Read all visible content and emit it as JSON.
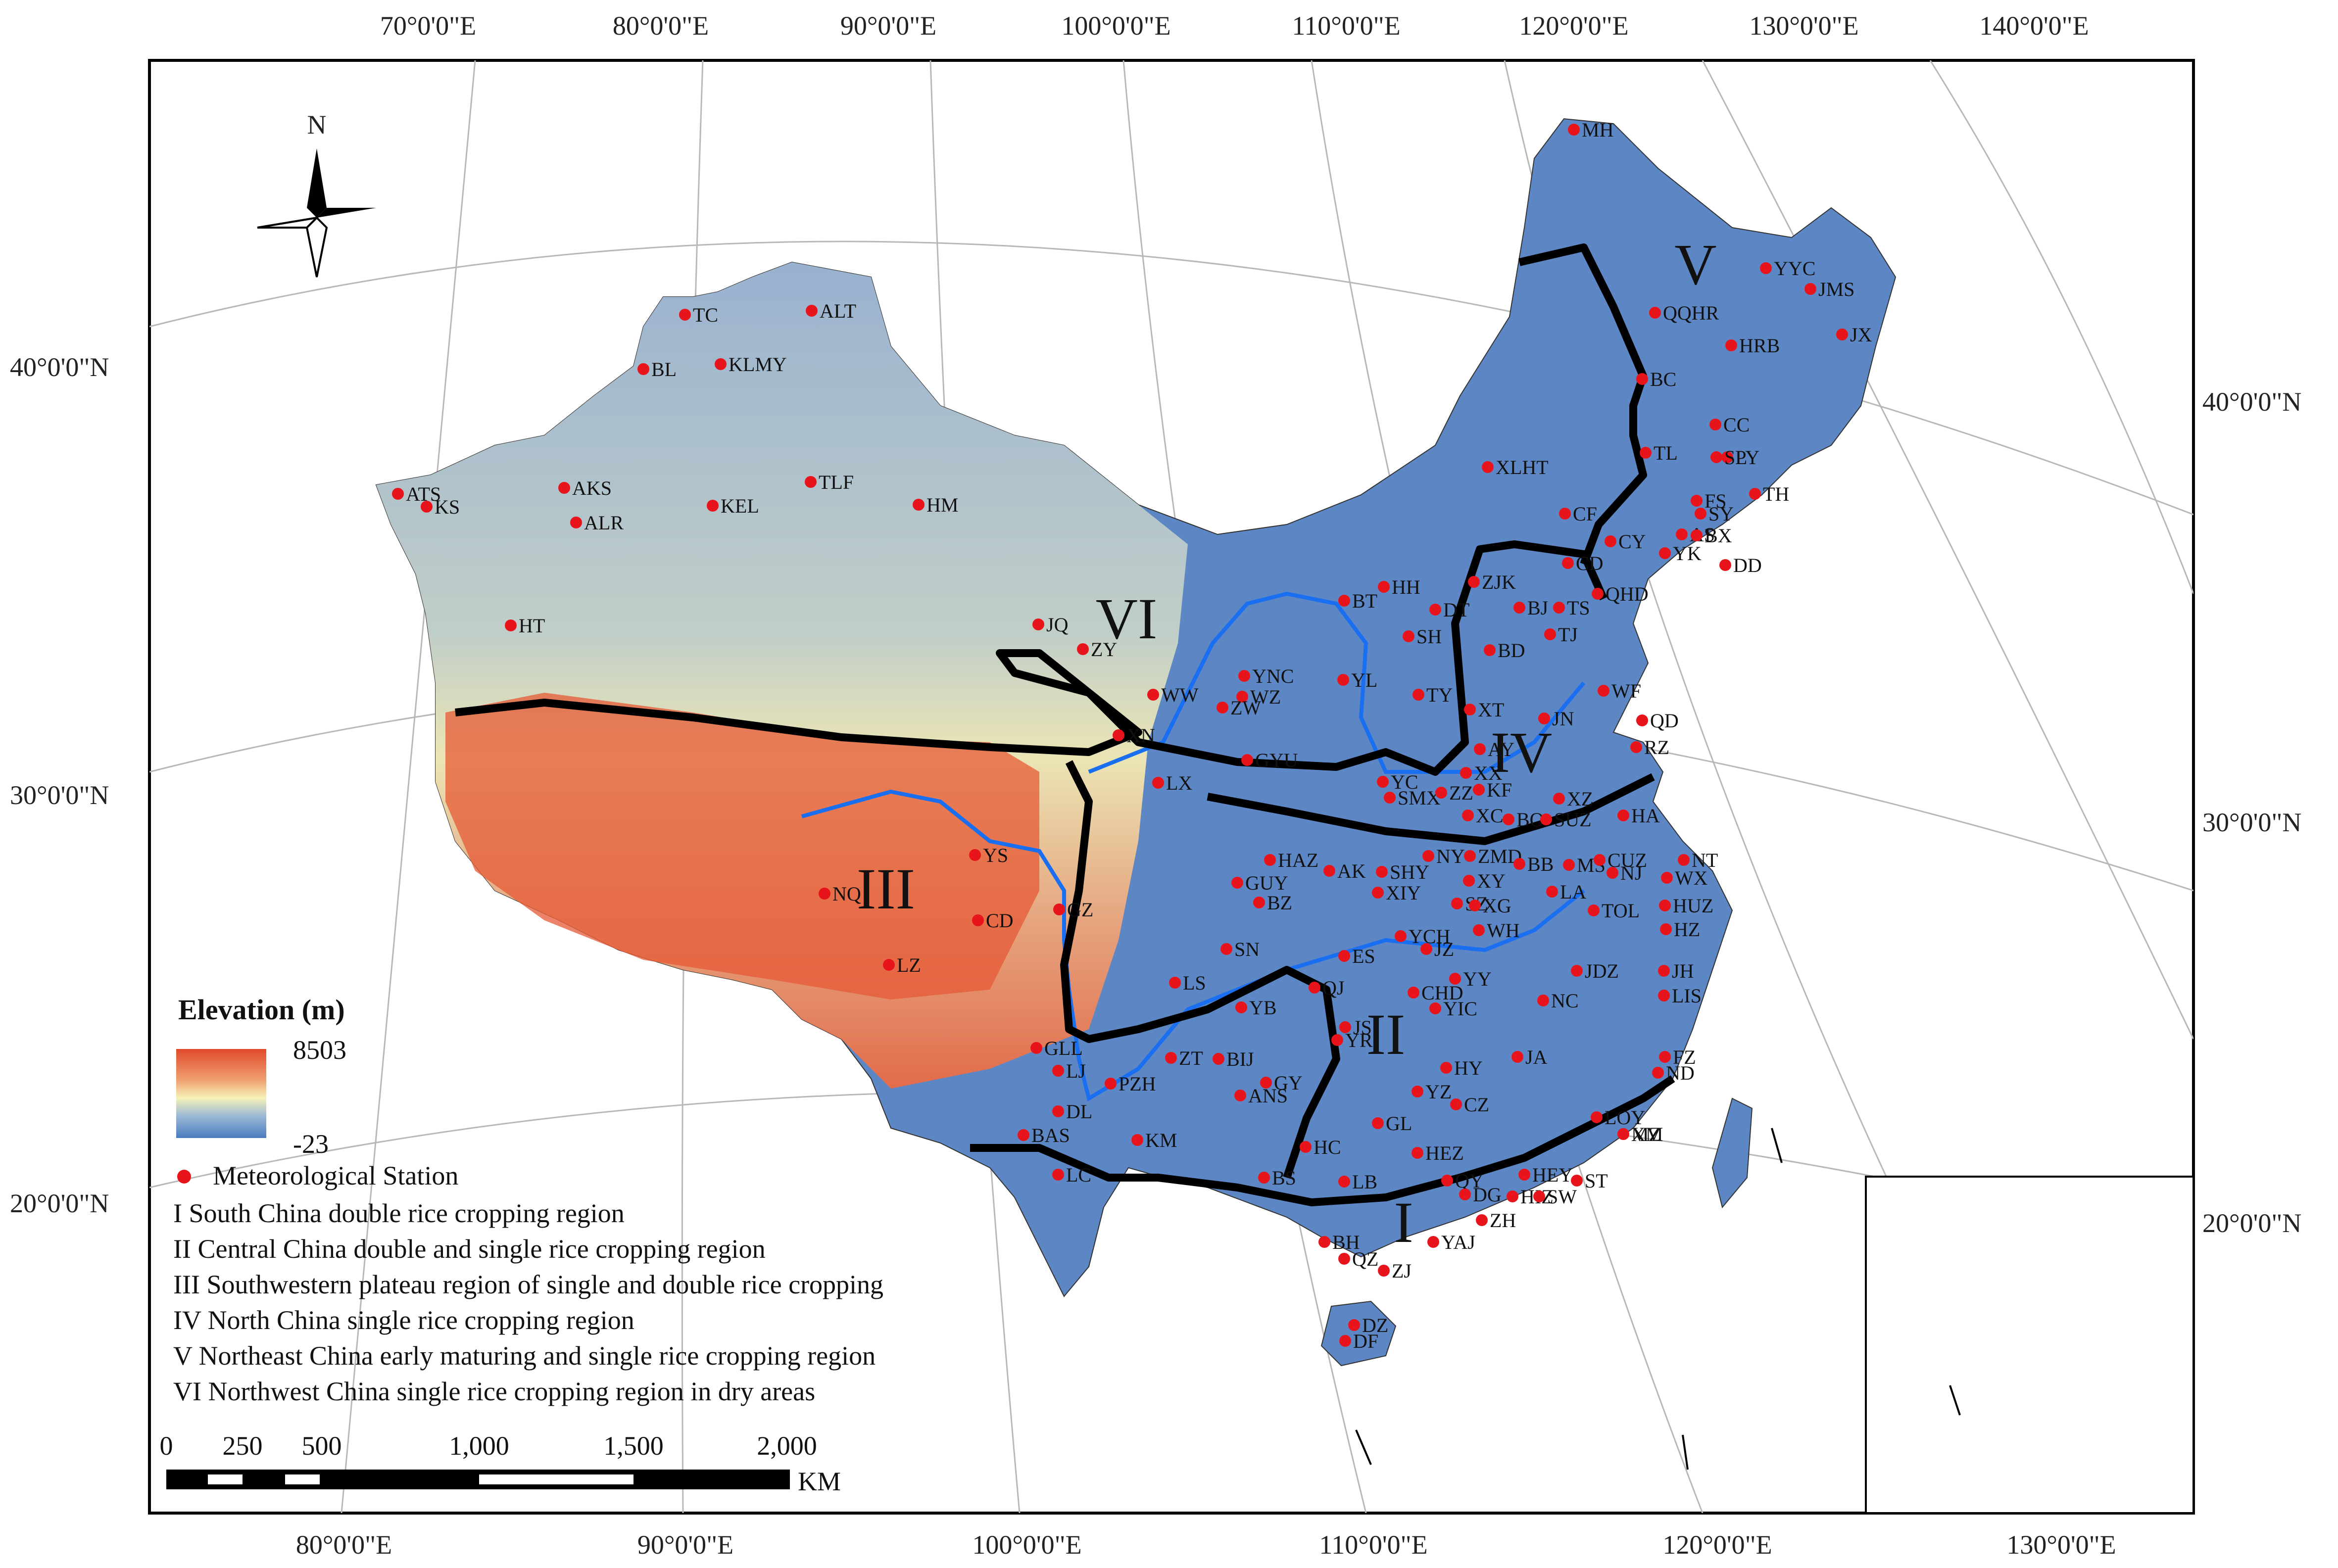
{
  "graticule": {
    "top": [
      "70°0'0\"E",
      "80°0'0\"E",
      "90°0'0\"E",
      "100°0'0\"E",
      "110°0'0\"E",
      "120°0'0\"E",
      "130°0'0\"E",
      "140°0'0\"E"
    ],
    "bottom": [
      "80°0'0\"E",
      "90°0'0\"E",
      "100°0'0\"E",
      "110°0'0\"E",
      "120°0'0\"E",
      "130°0'0\"E"
    ],
    "left": [
      "40°0'0\"N",
      "30°0'0\"N",
      "20°0'0\"N"
    ],
    "right": [
      "40°0'0\"N",
      "30°0'0\"N",
      "20°0'0\"N"
    ]
  },
  "north_arrow": {
    "label": "N"
  },
  "regions": [
    "I",
    "II",
    "III",
    "IV",
    "V",
    "VI"
  ],
  "stations": [
    "MH",
    "YYC",
    "JMS",
    "QQHR",
    "HRB",
    "JX",
    "BC",
    "CC",
    "LY",
    "TL",
    "SP",
    "TH",
    "FS",
    "SY",
    "AS",
    "BX",
    "CY",
    "YK",
    "DD",
    "QHD",
    "CF",
    "CD",
    "XLHT",
    "ZJK",
    "BJ",
    "TS",
    "TJ",
    "BD",
    "DT",
    "HH",
    "BT",
    "SH",
    "TY",
    "XT",
    "YL",
    "YNC",
    "WZ",
    "WW",
    "ZW",
    "JQ",
    "ZY",
    "XN",
    "GYU",
    "LX",
    "YC",
    "SMX",
    "XX",
    "KF",
    "ZZ",
    "AY",
    "JN",
    "WF",
    "QD",
    "RZ",
    "XZ",
    "HA",
    "XC",
    "BO",
    "SUZ",
    "NT",
    "ZMD",
    "BB",
    "MS",
    "CUZ",
    "NJ",
    "WX",
    "HAZ",
    "AK",
    "SHY",
    "NY",
    "XY",
    "XIY",
    "GUY",
    "BZ",
    "SZ",
    "XG",
    "LA",
    "TOL",
    "HUZ",
    "HZ",
    "SN",
    "ES",
    "YCH",
    "JZ",
    "WH",
    "JDZ",
    "JH",
    "LS",
    "YB",
    "QJ",
    "CHD",
    "YY",
    "NC",
    "LIS",
    "YIC",
    "JS",
    "YR",
    "HY",
    "JA",
    "FZ",
    "ND",
    "ZT",
    "BIJ",
    "PZH",
    "GY",
    "ANS",
    "YZ",
    "CZ",
    "DL",
    "LJ",
    "BAS",
    "KM",
    "GL",
    "HEZ",
    "LC",
    "BS",
    "HC",
    "LB",
    "HEY",
    "MZ",
    "QY",
    "DG",
    "HIZ",
    "SW",
    "ST",
    "LOY",
    "XM",
    "BH",
    "ZH",
    "YAJ",
    "QZ",
    "ZJ",
    "DZ",
    "DF",
    "TC",
    "ALT",
    "BL",
    "KLMY",
    "ATS",
    "KS",
    "AKS",
    "ALR",
    "KEL",
    "TLF",
    "HM",
    "HT",
    "YS",
    "NQ",
    "CD",
    "GZ",
    "LZ",
    "GLL"
  ],
  "legend": {
    "elevation_title": "Elevation (m)",
    "elevation_max": "8503",
    "elevation_min": "-23",
    "station_label": "Meteorological Station",
    "region_items": [
      "I  South China double rice cropping region",
      "II  Central China double and single rice cropping region",
      "III  Southwestern plateau region of single and double rice cropping",
      "IV  North China single rice cropping region",
      "V  Northeast China early maturing and single rice cropping region",
      "VI  Northwest China single rice cropping region in dry areas"
    ]
  },
  "scale_bar": {
    "ticks": [
      "0",
      "250",
      "500",
      "1,000",
      "1,500",
      "2,000"
    ],
    "unit": "KM"
  },
  "colors": {
    "high": "#e04a2c",
    "mid": "#f6f2b8",
    "low": "#4a7cc0",
    "station": "#e8141c",
    "river": "#1a6ff0",
    "boundary": "#000000"
  }
}
